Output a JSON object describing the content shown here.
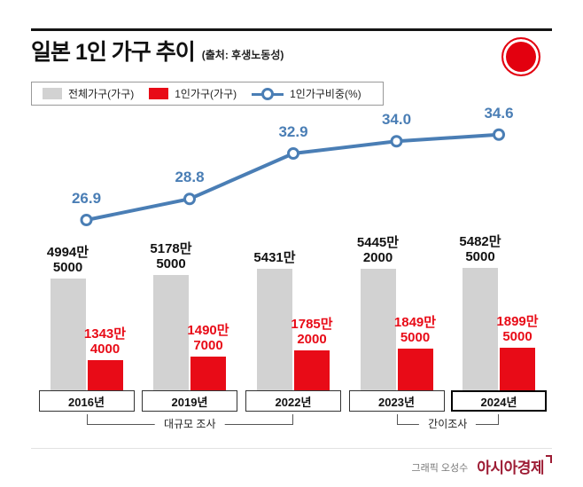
{
  "header": {
    "title": "일본 1인 가구 추이",
    "source": "(출처: 후생노동성)"
  },
  "legend": {
    "total_label": "전체가구(가구)",
    "single_label": "1인가구(가구)",
    "ratio_label": "1인가구비중(%)"
  },
  "chart_data": {
    "type": "bar",
    "title": "일본 1인 가구 추이",
    "categories": [
      "2016년",
      "2019년",
      "2022년",
      "2023년",
      "2024년"
    ],
    "series": [
      {
        "name": "전체가구(가구)",
        "type": "bar",
        "color": "#d2d2d2",
        "unit": "만",
        "values": [
          4994.5,
          5178.5,
          5431,
          5445.2,
          5482.5
        ],
        "labels": [
          [
            "4994만",
            "5000"
          ],
          [
            "5178만",
            "5000"
          ],
          [
            "5431만"
          ],
          [
            "5445만",
            "2000"
          ],
          [
            "5482만",
            "5000"
          ]
        ]
      },
      {
        "name": "1인가구(가구)",
        "type": "bar",
        "color": "#e80b17",
        "unit": "만",
        "values": [
          1343.4,
          1490.7,
          1785.2,
          1849.5,
          1899.5
        ],
        "labels": [
          [
            "1343만",
            "4000"
          ],
          [
            "1490만",
            "7000"
          ],
          [
            "1785만",
            "2000"
          ],
          [
            "1849만",
            "5000"
          ],
          [
            "1899만",
            "5000"
          ]
        ]
      },
      {
        "name": "1인가구비중(%)",
        "type": "line",
        "color": "#4a7eb5",
        "values": [
          26.9,
          28.8,
          32.9,
          34.0,
          34.6
        ],
        "labels": [
          "26.9",
          "28.8",
          "32.9",
          "34.0",
          "34.6"
        ],
        "ylim": [
          26,
          35
        ]
      }
    ],
    "annotations": [
      {
        "label": "대규모 조사",
        "from": "2016년",
        "to": "2022년"
      },
      {
        "label": "간이조사",
        "from": "2023년",
        "to": "2024년"
      }
    ],
    "highlight_category": "2024년",
    "legend_position": "top"
  },
  "footer": {
    "credit": "그래픽 오성수",
    "brand": "아시아경제",
    "brand_color": "#9d1c34"
  }
}
